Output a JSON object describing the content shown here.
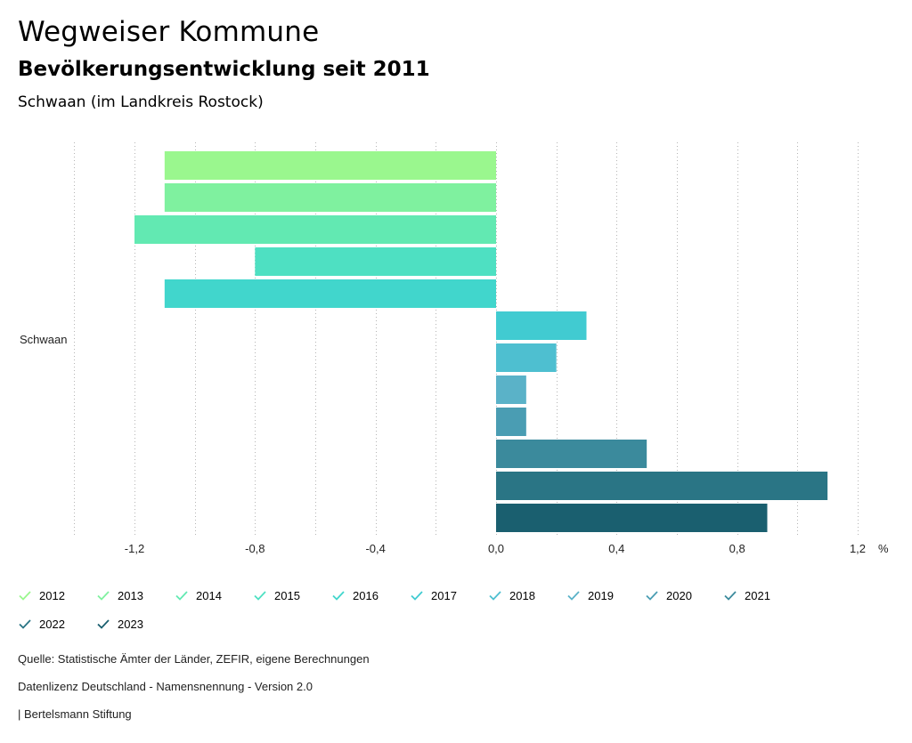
{
  "header": {
    "title": "Wegweiser Kommune",
    "subtitle": "Bevölkerungsentwicklung seit 2011",
    "region": "Schwaan (im Landkreis Rostock)"
  },
  "chart_data": {
    "type": "bar",
    "orientation": "horizontal",
    "categories": [
      "Schwaan"
    ],
    "series": [
      {
        "name": "2012",
        "values": [
          -1.1
        ],
        "color": "#9af78e"
      },
      {
        "name": "2013",
        "values": [
          -1.1
        ],
        "color": "#7ff19f"
      },
      {
        "name": "2014",
        "values": [
          -1.2
        ],
        "color": "#62e9b2"
      },
      {
        "name": "2015",
        "values": [
          -0.8
        ],
        "color": "#4ee0c2"
      },
      {
        "name": "2016",
        "values": [
          -1.1
        ],
        "color": "#41d6cc"
      },
      {
        "name": "2017",
        "values": [
          0.3
        ],
        "color": "#41cbd1"
      },
      {
        "name": "2018",
        "values": [
          0.2
        ],
        "color": "#4ebfd0"
      },
      {
        "name": "2019",
        "values": [
          0.1
        ],
        "color": "#5ab2c8"
      },
      {
        "name": "2020",
        "values": [
          0.1
        ],
        "color": "#4a9db3"
      },
      {
        "name": "2021",
        "values": [
          0.5
        ],
        "color": "#3b8a9c"
      },
      {
        "name": "2022",
        "values": [
          1.1
        ],
        "color": "#2a7585"
      },
      {
        "name": "2023",
        "values": [
          0.9
        ],
        "color": "#1a5f6f"
      }
    ],
    "xlim": [
      -1.4,
      1.2
    ],
    "xticks": [
      "-1,2",
      "-0,8",
      "-0,4",
      "0,0",
      "0,4",
      "0,8",
      "1,2"
    ],
    "xtick_values": [
      -1.2,
      -0.8,
      -0.4,
      0.0,
      0.4,
      0.8,
      1.2
    ],
    "xunit": "%",
    "grid": true
  },
  "footer": {
    "source": "Quelle: Statistische Ämter der Länder, ZEFIR, eigene Berechnungen",
    "license": "Datenlizenz Deutschland - Namensnennung - Version 2.0",
    "publisher": "| Bertelsmann Stiftung"
  }
}
